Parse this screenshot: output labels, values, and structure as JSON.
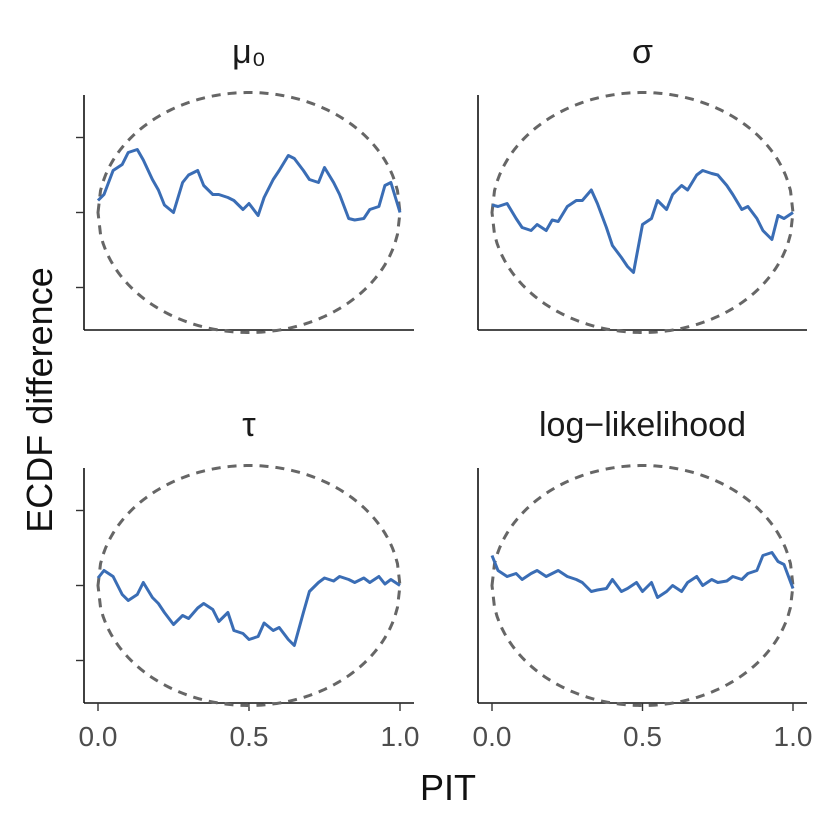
{
  "chart_data": {
    "type": "line",
    "layout": "2x2 facet grid",
    "xlabel": "PIT",
    "ylabel": "ECDF difference",
    "xlim": [
      0,
      1
    ],
    "ylim": [
      -0.075,
      0.075
    ],
    "x_ticks": [
      0.0,
      0.5,
      1.0
    ],
    "x_tick_labels": [
      "0.0",
      "0.5",
      "1.0"
    ],
    "y_ticks": [
      -0.05,
      0.0,
      0.05
    ],
    "y_tick_labels": [
      "",
      "",
      ""
    ],
    "grid": false,
    "legend": "none",
    "colors": {
      "ecdf": "#3a6db5",
      "band": "#666666",
      "axis": "#111111"
    },
    "band": {
      "type": "simultaneous confidence envelope",
      "style": "dashed",
      "max_half_width": 0.08
    },
    "panels": [
      {
        "title": "μ₀",
        "x": [
          0,
          0.02,
          0.05,
          0.08,
          0.1,
          0.13,
          0.15,
          0.18,
          0.2,
          0.22,
          0.25,
          0.28,
          0.3,
          0.33,
          0.35,
          0.38,
          0.4,
          0.43,
          0.45,
          0.48,
          0.5,
          0.53,
          0.55,
          0.58,
          0.6,
          0.63,
          0.65,
          0.68,
          0.7,
          0.73,
          0.75,
          0.78,
          0.8,
          0.83,
          0.85,
          0.88,
          0.9,
          0.93,
          0.95,
          0.97,
          1
        ],
        "values": [
          0.008,
          0.012,
          0.028,
          0.032,
          0.04,
          0.042,
          0.035,
          0.022,
          0.015,
          0.005,
          0,
          0.02,
          0.025,
          0.028,
          0.018,
          0.012,
          0.012,
          0.01,
          0.008,
          0.002,
          0.006,
          -0.002,
          0.01,
          0.022,
          0.028,
          0.038,
          0.036,
          0.028,
          0.022,
          0.02,
          0.03,
          0.02,
          0.012,
          -0.004,
          -0.005,
          -0.004,
          0.002,
          0.004,
          0.018,
          0.02,
          0
        ]
      },
      {
        "title": "σ",
        "x": [
          0,
          0.02,
          0.05,
          0.08,
          0.1,
          0.13,
          0.15,
          0.18,
          0.2,
          0.22,
          0.25,
          0.28,
          0.3,
          0.33,
          0.35,
          0.38,
          0.4,
          0.43,
          0.45,
          0.47,
          0.5,
          0.53,
          0.55,
          0.58,
          0.6,
          0.63,
          0.65,
          0.68,
          0.7,
          0.73,
          0.75,
          0.78,
          0.8,
          0.83,
          0.85,
          0.88,
          0.9,
          0.93,
          0.95,
          0.97,
          1
        ],
        "values": [
          0.005,
          0.004,
          0.006,
          -0.004,
          -0.01,
          -0.012,
          -0.008,
          -0.012,
          -0.005,
          -0.006,
          0.004,
          0.008,
          0.008,
          0.015,
          0.006,
          -0.01,
          -0.022,
          -0.03,
          -0.036,
          -0.04,
          -0.008,
          -0.004,
          0.008,
          0.002,
          0.012,
          0.018,
          0.015,
          0.025,
          0.028,
          0.026,
          0.025,
          0.018,
          0.012,
          0.002,
          0.004,
          -0.004,
          -0.012,
          -0.018,
          -0.002,
          -0.004,
          0
        ]
      },
      {
        "title": "τ",
        "x": [
          0,
          0.02,
          0.05,
          0.08,
          0.1,
          0.13,
          0.15,
          0.18,
          0.2,
          0.22,
          0.25,
          0.28,
          0.3,
          0.33,
          0.35,
          0.38,
          0.4,
          0.43,
          0.45,
          0.48,
          0.5,
          0.53,
          0.55,
          0.58,
          0.6,
          0.63,
          0.65,
          0.68,
          0.7,
          0.73,
          0.75,
          0.78,
          0.8,
          0.83,
          0.85,
          0.88,
          0.9,
          0.93,
          0.95,
          0.97,
          1
        ],
        "values": [
          0.005,
          0.01,
          0.006,
          -0.006,
          -0.01,
          -0.006,
          0.002,
          -0.008,
          -0.012,
          -0.018,
          -0.026,
          -0.02,
          -0.022,
          -0.015,
          -0.012,
          -0.016,
          -0.024,
          -0.018,
          -0.03,
          -0.032,
          -0.036,
          -0.034,
          -0.025,
          -0.03,
          -0.028,
          -0.036,
          -0.04,
          -0.018,
          -0.004,
          0.002,
          0.005,
          0.003,
          0.006,
          0.004,
          0.002,
          0.005,
          0.002,
          0.006,
          0.001,
          0.004,
          0
        ]
      },
      {
        "title": "log−likelihood",
        "x": [
          0,
          0.02,
          0.05,
          0.08,
          0.1,
          0.13,
          0.15,
          0.18,
          0.2,
          0.22,
          0.25,
          0.28,
          0.3,
          0.33,
          0.35,
          0.38,
          0.4,
          0.43,
          0.45,
          0.48,
          0.5,
          0.53,
          0.55,
          0.58,
          0.6,
          0.63,
          0.65,
          0.68,
          0.7,
          0.73,
          0.75,
          0.78,
          0.8,
          0.83,
          0.85,
          0.88,
          0.9,
          0.93,
          0.95,
          0.97,
          1
        ],
        "values": [
          0.02,
          0.01,
          0.006,
          0.008,
          0.004,
          0.008,
          0.01,
          0.006,
          0.008,
          0.01,
          0.006,
          0.004,
          0.002,
          -0.004,
          -0.003,
          -0.002,
          0.004,
          -0.004,
          -0.002,
          0.002,
          -0.004,
          0.002,
          -0.008,
          -0.004,
          0,
          -0.004,
          0.002,
          0.006,
          0,
          0.004,
          0.002,
          0.003,
          0.006,
          0.004,
          0.008,
          0.01,
          0.02,
          0.022,
          0.016,
          0.014,
          -0.002
        ]
      }
    ]
  }
}
